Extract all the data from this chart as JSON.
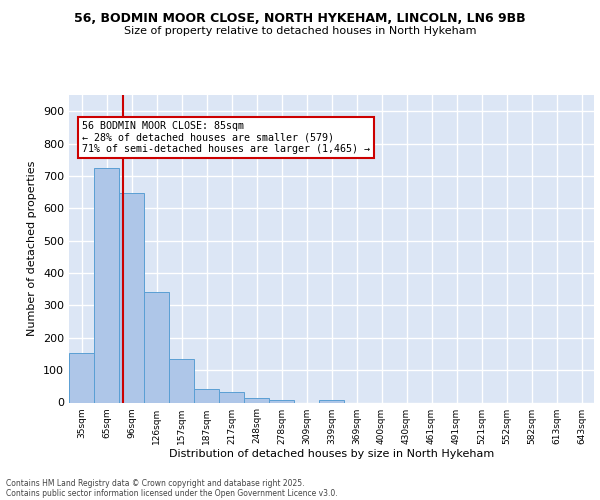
{
  "title1": "56, BODMIN MOOR CLOSE, NORTH HYKEHAM, LINCOLN, LN6 9BB",
  "title2": "Size of property relative to detached houses in North Hykeham",
  "xlabel": "Distribution of detached houses by size in North Hykeham",
  "ylabel": "Number of detached properties",
  "bar_labels": [
    "35sqm",
    "65sqm",
    "96sqm",
    "126sqm",
    "157sqm",
    "187sqm",
    "217sqm",
    "248sqm",
    "278sqm",
    "309sqm",
    "339sqm",
    "369sqm",
    "400sqm",
    "430sqm",
    "461sqm",
    "491sqm",
    "521sqm",
    "552sqm",
    "582sqm",
    "613sqm",
    "643sqm"
  ],
  "bar_values": [
    152,
    725,
    648,
    342,
    135,
    42,
    32,
    13,
    8,
    0,
    8,
    0,
    0,
    0,
    0,
    0,
    0,
    0,
    0,
    0,
    0
  ],
  "bar_color": "#aec6e8",
  "bar_edge_color": "#5a9fd4",
  "bg_color": "#dce6f5",
  "grid_color": "#ffffff",
  "annotation_title": "56 BODMIN MOOR CLOSE: 85sqm",
  "annotation_line1": "← 28% of detached houses are smaller (579)",
  "annotation_line2": "71% of semi-detached houses are larger (1,465) →",
  "annotation_box_color": "#ffffff",
  "annotation_border_color": "#cc0000",
  "footer1": "Contains HM Land Registry data © Crown copyright and database right 2025.",
  "footer2": "Contains public sector information licensed under the Open Government Licence v3.0.",
  "ylim": [
    0,
    950
  ],
  "yticks": [
    0,
    100,
    200,
    300,
    400,
    500,
    600,
    700,
    800,
    900
  ]
}
